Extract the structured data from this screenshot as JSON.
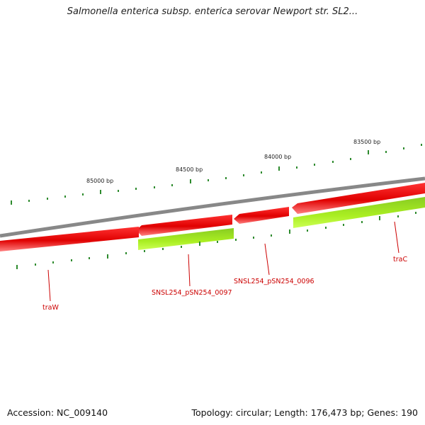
{
  "header": {
    "title": "Salmonella enterica subsp. enterica serovar Newport str. SL2..."
  },
  "footer": {
    "accession": "Accession: NC_009140",
    "summary": "Topology: circular; Length: 176,473 bp; Genes: 190"
  },
  "scale": {
    "ticks": [
      "85000 bp",
      "84500 bp",
      "84000 bp",
      "83500 bp"
    ]
  },
  "genes": [
    {
      "label": "traW"
    },
    {
      "label": "SNSL254_pSN254_0097"
    },
    {
      "label": "SNSL254_pSN254_0096"
    },
    {
      "label": "traC"
    }
  ],
  "colors": {
    "backbone": "#7f7f7f",
    "gene_strand": "#ee1111",
    "gene_strand_light": "#ff8888",
    "cds_strand": "#99dd22",
    "cds_strand_light": "#ccff66",
    "tick": "#2e8b2e",
    "label": "#cc0000"
  }
}
